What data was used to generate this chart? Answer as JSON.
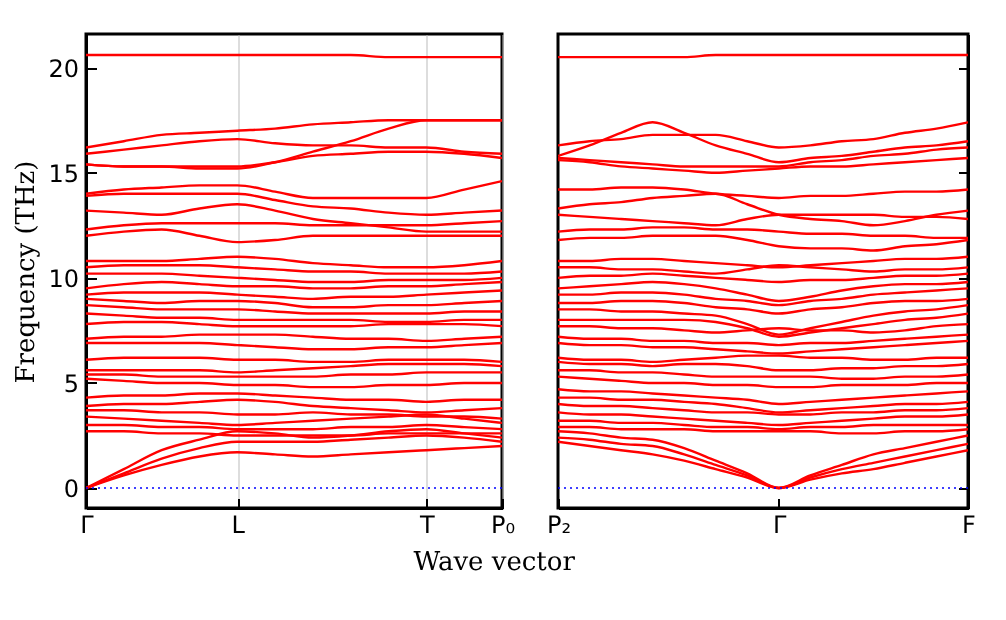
{
  "chart_data": [
    {
      "type": "line",
      "ylabel": "Frequency (THz)",
      "xlabel": "Wave vector",
      "grid": "x",
      "categories": [
        "Γ",
        null,
        null,
        null,
        "L",
        null,
        null,
        null,
        null,
        "T",
        null,
        "P₀"
      ],
      "ylim": [
        -0.95,
        21.6
      ],
      "yticks": [
        0,
        5,
        10,
        15,
        20
      ],
      "ref_lines": [
        {
          "axis": "y",
          "value": 0,
          "color": "#0000ff",
          "line_style": "dotted"
        }
      ],
      "series": [
        {
          "color": "#ff0000",
          "values": [
            20.6,
            20.6,
            20.6,
            20.6,
            20.6,
            20.6,
            20.6,
            20.6,
            20.5,
            20.5,
            20.5,
            20.5
          ]
        },
        {
          "color": "#ff0000",
          "values": [
            16.2,
            16.5,
            16.8,
            16.9,
            17.0,
            17.1,
            17.3,
            17.4,
            17.5,
            17.5,
            17.5,
            17.5
          ]
        },
        {
          "color": "#ff0000",
          "values": [
            15.9,
            16.1,
            16.3,
            16.5,
            16.6,
            16.4,
            16.3,
            16.3,
            16.2,
            16.2,
            16.0,
            15.9
          ]
        },
        {
          "color": "#ff0000",
          "values": [
            15.4,
            15.3,
            15.3,
            15.2,
            15.2,
            15.5,
            16.0,
            16.5,
            17.1,
            17.5,
            17.5,
            17.5
          ]
        },
        {
          "color": "#ff0000",
          "values": [
            15.4,
            15.3,
            15.3,
            15.3,
            15.3,
            15.5,
            15.8,
            15.9,
            16.0,
            16.0,
            15.9,
            15.7
          ]
        },
        {
          "color": "#ff0000",
          "values": [
            14.0,
            14.2,
            14.3,
            14.4,
            14.4,
            14.1,
            13.8,
            13.8,
            13.8,
            13.8,
            14.2,
            14.6
          ]
        },
        {
          "color": "#ff0000",
          "values": [
            13.9,
            14.0,
            14.0,
            14.0,
            14.0,
            13.7,
            13.4,
            13.3,
            13.1,
            13.0,
            13.1,
            13.2
          ]
        },
        {
          "color": "#ff0000",
          "values": [
            13.2,
            13.1,
            13.0,
            13.3,
            13.5,
            13.2,
            12.8,
            12.6,
            12.4,
            12.2,
            12.2,
            12.2
          ]
        },
        {
          "color": "#ff0000",
          "values": [
            12.3,
            12.5,
            12.6,
            12.6,
            12.6,
            12.6,
            12.5,
            12.5,
            12.5,
            12.5,
            12.6,
            12.7
          ]
        },
        {
          "color": "#ff0000",
          "values": [
            12.0,
            12.2,
            12.3,
            12.0,
            11.7,
            11.8,
            12.0,
            12.0,
            12.0,
            12.0,
            12.0,
            12.0
          ]
        },
        {
          "color": "#ff0000",
          "values": [
            10.8,
            10.8,
            10.8,
            10.9,
            11.0,
            10.9,
            10.7,
            10.6,
            10.5,
            10.5,
            10.6,
            10.8
          ]
        },
        {
          "color": "#ff0000",
          "values": [
            10.5,
            10.6,
            10.6,
            10.6,
            10.5,
            10.4,
            10.3,
            10.3,
            10.2,
            10.2,
            10.2,
            10.3
          ]
        },
        {
          "color": "#ff0000",
          "values": [
            10.2,
            10.2,
            10.2,
            10.1,
            10.0,
            9.9,
            9.8,
            9.8,
            9.9,
            9.9,
            9.9,
            10.0
          ]
        },
        {
          "color": "#ff0000",
          "values": [
            9.5,
            9.7,
            9.8,
            9.7,
            9.6,
            9.6,
            9.5,
            9.5,
            9.6,
            9.6,
            9.7,
            9.8
          ]
        },
        {
          "color": "#ff0000",
          "values": [
            9.2,
            9.3,
            9.3,
            9.3,
            9.2,
            9.1,
            9.0,
            9.1,
            9.1,
            9.2,
            9.3,
            9.4
          ]
        },
        {
          "color": "#ff0000",
          "values": [
            9.0,
            8.9,
            8.8,
            8.9,
            8.9,
            8.8,
            8.6,
            8.6,
            8.7,
            8.7,
            8.8,
            8.9
          ]
        },
        {
          "color": "#ff0000",
          "values": [
            8.7,
            8.6,
            8.5,
            8.5,
            8.5,
            8.4,
            8.3,
            8.3,
            8.3,
            8.3,
            8.4,
            8.4
          ]
        },
        {
          "color": "#ff0000",
          "values": [
            8.3,
            8.2,
            8.1,
            8.1,
            8.0,
            8.0,
            8.0,
            8.0,
            7.9,
            7.9,
            8.0,
            8.0
          ]
        },
        {
          "color": "#ff0000",
          "values": [
            7.8,
            7.9,
            7.9,
            7.8,
            7.7,
            7.7,
            7.7,
            7.7,
            7.8,
            7.8,
            7.8,
            7.7
          ]
        },
        {
          "color": "#ff0000",
          "values": [
            7.1,
            7.2,
            7.2,
            7.3,
            7.3,
            7.3,
            7.2,
            7.1,
            7.1,
            7.0,
            7.1,
            7.2
          ]
        },
        {
          "color": "#ff0000",
          "values": [
            6.9,
            6.9,
            6.9,
            6.9,
            6.8,
            6.7,
            6.6,
            6.6,
            6.7,
            6.7,
            6.8,
            6.9
          ]
        },
        {
          "color": "#ff0000",
          "values": [
            6.1,
            6.2,
            6.2,
            6.2,
            6.1,
            6.1,
            6.0,
            6.0,
            6.1,
            6.1,
            6.1,
            6.0
          ]
        },
        {
          "color": "#ff0000",
          "values": [
            5.6,
            5.6,
            5.6,
            5.6,
            5.5,
            5.6,
            5.7,
            5.8,
            5.9,
            5.9,
            5.9,
            5.8
          ]
        },
        {
          "color": "#ff0000",
          "values": [
            5.4,
            5.4,
            5.3,
            5.3,
            5.3,
            5.3,
            5.3,
            5.4,
            5.4,
            5.5,
            5.5,
            5.5
          ]
        },
        {
          "color": "#ff0000",
          "values": [
            5.2,
            5.1,
            5.0,
            5.0,
            4.9,
            4.9,
            4.8,
            4.8,
            4.9,
            4.9,
            5.0,
            5.0
          ]
        },
        {
          "color": "#ff0000",
          "values": [
            4.3,
            4.4,
            4.4,
            4.5,
            4.5,
            4.4,
            4.3,
            4.2,
            4.2,
            4.1,
            4.2,
            4.2
          ]
        },
        {
          "color": "#ff0000",
          "values": [
            3.9,
            4.0,
            4.0,
            4.1,
            4.2,
            4.1,
            3.9,
            3.8,
            3.7,
            3.6,
            3.7,
            3.8
          ]
        },
        {
          "color": "#ff0000",
          "values": [
            3.7,
            3.7,
            3.6,
            3.6,
            3.5,
            3.5,
            3.6,
            3.5,
            3.5,
            3.4,
            3.4,
            3.3
          ]
        },
        {
          "color": "#ff0000",
          "values": [
            3.4,
            3.3,
            3.2,
            3.1,
            3.0,
            3.1,
            3.2,
            3.3,
            3.4,
            3.5,
            3.3,
            3.1
          ]
        },
        {
          "color": "#ff0000",
          "values": [
            3.0,
            3.0,
            2.9,
            2.9,
            2.8,
            2.8,
            2.8,
            2.9,
            2.9,
            3.0,
            2.9,
            2.8
          ]
        },
        {
          "color": "#ff0000",
          "values": [
            2.7,
            2.7,
            2.6,
            2.6,
            2.5,
            2.5,
            2.5,
            2.5,
            2.6,
            2.6,
            2.6,
            2.6
          ]
        },
        {
          "color": "#ff0000",
          "values": [
            0,
            0.9,
            1.8,
            2.3,
            2.7,
            2.6,
            2.4,
            2.5,
            2.7,
            2.8,
            2.6,
            2.4
          ]
        },
        {
          "color": "#ff0000",
          "values": [
            0,
            0.7,
            1.4,
            1.9,
            2.2,
            2.2,
            2.2,
            2.3,
            2.4,
            2.5,
            2.4,
            2.2
          ]
        },
        {
          "color": "#ff0000",
          "values": [
            0,
            0.6,
            1.1,
            1.5,
            1.7,
            1.6,
            1.5,
            1.6,
            1.7,
            1.8,
            1.9,
            2.0
          ]
        }
      ]
    },
    {
      "type": "line",
      "tick_labels": "x",
      "categories": [
        "P₂",
        null,
        null,
        null,
        null,
        null,
        null,
        "Γ",
        null,
        null,
        null,
        null,
        null,
        "F"
      ],
      "ylim": [
        -0.95,
        21.6
      ],
      "yticks": [
        0,
        5,
        10,
        15,
        20
      ],
      "ref_lines": [
        {
          "axis": "y",
          "value": 0,
          "color": "#0000ff",
          "line_style": "dotted"
        }
      ],
      "series": [
        {
          "color": "#ff0000",
          "values": [
            20.5,
            20.5,
            20.5,
            20.5,
            20.5,
            20.6,
            20.6,
            20.6,
            20.6,
            20.6,
            20.6,
            20.6,
            20.6,
            20.6
          ]
        },
        {
          "color": "#ff0000",
          "values": [
            16.3,
            16.5,
            16.6,
            16.8,
            16.8,
            16.8,
            16.5,
            16.2,
            16.3,
            16.5,
            16.6,
            16.9,
            17.1,
            17.4
          ]
        },
        {
          "color": "#ff0000",
          "values": [
            15.8,
            16.3,
            16.9,
            17.4,
            16.9,
            16.3,
            15.9,
            15.5,
            15.7,
            15.8,
            16.0,
            16.2,
            16.3,
            16.5
          ]
        },
        {
          "color": "#ff0000",
          "values": [
            15.7,
            15.6,
            15.5,
            15.4,
            15.3,
            15.3,
            15.3,
            15.3,
            15.5,
            15.6,
            15.8,
            15.9,
            16.1,
            16.2
          ]
        },
        {
          "color": "#ff0000",
          "values": [
            15.6,
            15.5,
            15.3,
            15.2,
            15.1,
            15.0,
            15.1,
            15.2,
            15.3,
            15.3,
            15.4,
            15.5,
            15.6,
            15.7
          ]
        },
        {
          "color": "#ff0000",
          "values": [
            14.2,
            14.2,
            14.3,
            14.3,
            14.2,
            14.0,
            13.9,
            13.8,
            13.9,
            13.9,
            14.0,
            14.1,
            14.1,
            14.2
          ]
        },
        {
          "color": "#ff0000",
          "values": [
            13.3,
            13.5,
            13.6,
            13.8,
            13.9,
            14.0,
            13.5,
            13.0,
            12.8,
            12.7,
            12.5,
            12.7,
            13.0,
            13.2
          ]
        },
        {
          "color": "#ff0000",
          "values": [
            13.0,
            12.9,
            12.8,
            12.7,
            12.6,
            12.5,
            12.8,
            13.0,
            13.0,
            13.0,
            13.0,
            12.9,
            12.9,
            12.8
          ]
        },
        {
          "color": "#ff0000",
          "values": [
            12.2,
            12.3,
            12.3,
            12.4,
            12.4,
            12.3,
            12.3,
            12.2,
            12.1,
            12.1,
            12.0,
            12.0,
            11.9,
            11.9
          ]
        },
        {
          "color": "#ff0000",
          "values": [
            11.8,
            11.9,
            11.9,
            12.0,
            12.0,
            12.0,
            11.8,
            11.5,
            11.4,
            11.4,
            11.3,
            11.5,
            11.6,
            11.8
          ]
        },
        {
          "color": "#ff0000",
          "values": [
            10.8,
            10.8,
            10.9,
            10.9,
            10.8,
            10.7,
            10.6,
            10.5,
            10.6,
            10.7,
            10.8,
            10.9,
            10.9,
            11.0
          ]
        },
        {
          "color": "#ff0000",
          "values": [
            10.5,
            10.5,
            10.4,
            10.4,
            10.3,
            10.2,
            10.4,
            10.6,
            10.5,
            10.4,
            10.3,
            10.4,
            10.4,
            10.5
          ]
        },
        {
          "color": "#ff0000",
          "values": [
            10.0,
            10.1,
            10.1,
            10.2,
            10.1,
            10.0,
            9.9,
            9.8,
            9.9,
            9.9,
            10.0,
            10.1,
            10.1,
            10.2
          ]
        },
        {
          "color": "#ff0000",
          "values": [
            9.5,
            9.6,
            9.7,
            9.8,
            9.7,
            9.5,
            9.2,
            8.9,
            9.1,
            9.4,
            9.6,
            9.7,
            9.7,
            9.8
          ]
        },
        {
          "color": "#ff0000",
          "values": [
            9.2,
            9.2,
            9.3,
            9.3,
            9.2,
            9.0,
            8.9,
            8.7,
            8.9,
            9.0,
            9.2,
            9.3,
            9.4,
            9.5
          ]
        },
        {
          "color": "#ff0000",
          "values": [
            8.8,
            8.8,
            8.9,
            8.9,
            8.8,
            8.6,
            8.5,
            8.3,
            8.5,
            8.6,
            8.8,
            8.9,
            8.9,
            9.0
          ]
        },
        {
          "color": "#ff0000",
          "values": [
            8.5,
            8.5,
            8.4,
            8.4,
            8.3,
            8.2,
            7.8,
            7.3,
            7.6,
            7.9,
            8.2,
            8.4,
            8.5,
            8.7
          ]
        },
        {
          "color": "#ff0000",
          "values": [
            8.0,
            8.0,
            8.0,
            8.0,
            8.0,
            7.9,
            7.6,
            7.2,
            7.4,
            7.6,
            7.8,
            8.0,
            8.1,
            8.3
          ]
        },
        {
          "color": "#ff0000",
          "values": [
            7.7,
            7.7,
            7.6,
            7.6,
            7.5,
            7.4,
            7.5,
            7.6,
            7.5,
            7.5,
            7.4,
            7.5,
            7.7,
            7.8
          ]
        },
        {
          "color": "#ff0000",
          "values": [
            7.2,
            7.1,
            7.1,
            7.0,
            7.0,
            6.9,
            6.9,
            6.8,
            6.9,
            6.9,
            7.0,
            7.1,
            7.2,
            7.3
          ]
        },
        {
          "color": "#ff0000",
          "values": [
            6.9,
            6.8,
            6.8,
            6.7,
            6.7,
            6.6,
            6.5,
            6.4,
            6.5,
            6.6,
            6.7,
            6.8,
            6.9,
            7.0
          ]
        },
        {
          "color": "#ff0000",
          "values": [
            6.2,
            6.1,
            6.1,
            6.0,
            6.1,
            6.2,
            6.3,
            6.3,
            6.2,
            6.2,
            6.1,
            6.1,
            6.2,
            6.2
          ]
        },
        {
          "color": "#ff0000",
          "values": [
            6.0,
            5.9,
            5.9,
            5.8,
            5.9,
            5.9,
            5.8,
            5.6,
            5.6,
            5.7,
            5.7,
            5.8,
            5.8,
            5.9
          ]
        },
        {
          "color": "#ff0000",
          "values": [
            5.6,
            5.6,
            5.5,
            5.5,
            5.4,
            5.3,
            5.3,
            5.3,
            5.3,
            5.2,
            5.2,
            5.3,
            5.3,
            5.4
          ]
        },
        {
          "color": "#ff0000",
          "values": [
            5.3,
            5.2,
            5.1,
            5.0,
            5.0,
            4.9,
            4.9,
            4.8,
            4.8,
            4.9,
            4.9,
            4.9,
            5.0,
            5.0
          ]
        },
        {
          "color": "#ff0000",
          "values": [
            4.7,
            4.6,
            4.6,
            4.5,
            4.4,
            4.3,
            4.2,
            4.0,
            4.1,
            4.2,
            4.3,
            4.4,
            4.5,
            4.6
          ]
        },
        {
          "color": "#ff0000",
          "values": [
            4.3,
            4.3,
            4.2,
            4.2,
            4.1,
            4.0,
            3.8,
            3.6,
            3.7,
            3.8,
            3.9,
            4.0,
            4.0,
            4.1
          ]
        },
        {
          "color": "#ff0000",
          "values": [
            4.0,
            3.9,
            3.9,
            3.8,
            3.7,
            3.6,
            3.6,
            3.5,
            3.5,
            3.6,
            3.6,
            3.7,
            3.7,
            3.8
          ]
        },
        {
          "color": "#ff0000",
          "values": [
            3.6,
            3.5,
            3.5,
            3.4,
            3.3,
            3.2,
            3.1,
            3.0,
            3.1,
            3.2,
            3.3,
            3.4,
            3.4,
            3.5
          ]
        },
        {
          "color": "#ff0000",
          "values": [
            3.2,
            3.2,
            3.1,
            3.1,
            3.0,
            2.9,
            2.9,
            2.8,
            2.9,
            2.9,
            3.0,
            3.0,
            3.0,
            3.0
          ]
        },
        {
          "color": "#ff0000",
          "values": [
            2.9,
            2.9,
            2.8,
            2.8,
            2.8,
            2.7,
            2.7,
            2.7,
            2.7,
            2.6,
            2.6,
            2.7,
            2.7,
            2.8
          ]
        },
        {
          "color": "#ff0000",
          "values": [
            2.7,
            2.6,
            2.4,
            2.3,
            1.9,
            1.3,
            0.7,
            0,
            0.6,
            1.1,
            1.6,
            1.9,
            2.2,
            2.5
          ]
        },
        {
          "color": "#ff0000",
          "values": [
            2.4,
            2.3,
            2.1,
            2.0,
            1.6,
            1.1,
            0.6,
            0,
            0.5,
            0.9,
            1.2,
            1.5,
            1.8,
            2.1
          ]
        },
        {
          "color": "#ff0000",
          "values": [
            2.2,
            2.0,
            1.8,
            1.6,
            1.3,
            0.9,
            0.5,
            0,
            0.4,
            0.7,
            0.9,
            1.2,
            1.5,
            1.8
          ]
        }
      ]
    }
  ]
}
